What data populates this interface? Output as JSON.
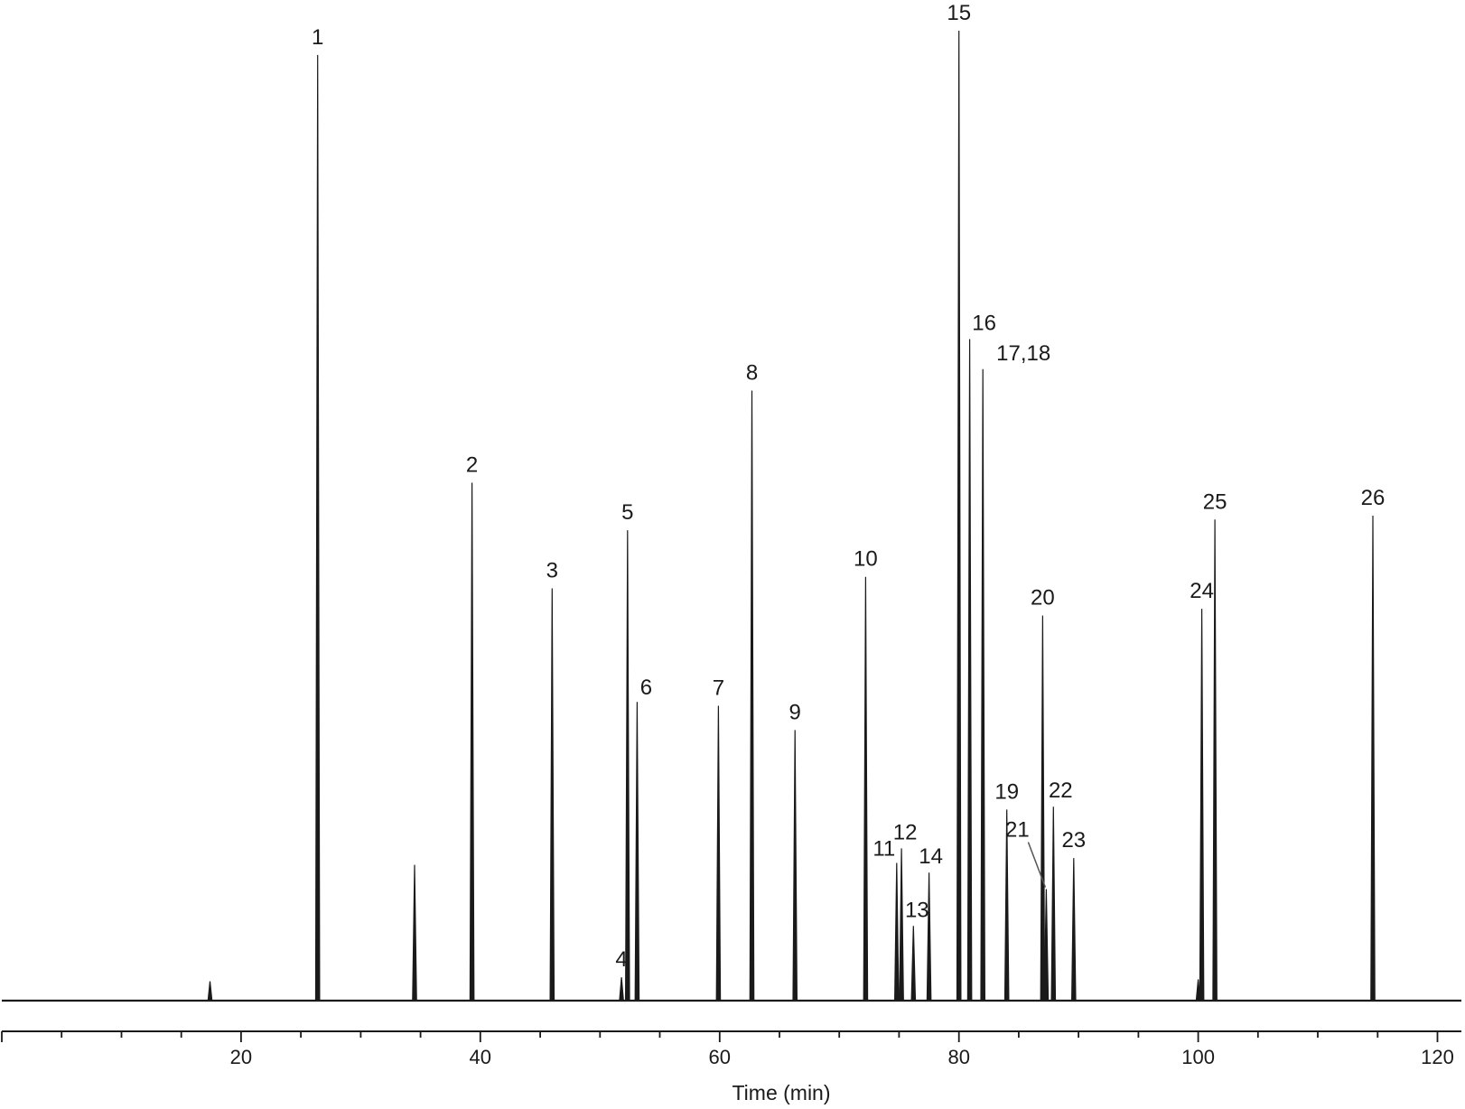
{
  "chart_data": {
    "type": "line",
    "title": "",
    "xlabel": "Time (min)",
    "ylabel": "",
    "xlim": [
      0,
      122
    ],
    "ylim": [
      0,
      1.0
    ],
    "grid": false,
    "legend": "none",
    "line_color": "#1a1a1a",
    "x_major_ticks": [
      20,
      40,
      60,
      80,
      100,
      120
    ],
    "x_minor_step": 5,
    "peaks": [
      {
        "label": "1",
        "x": 26.4,
        "y": 0.975
      },
      {
        "label": "",
        "x": 17.4,
        "y": 0.02
      },
      {
        "label": "",
        "x": 34.5,
        "y": 0.14
      },
      {
        "label": "2",
        "x": 39.3,
        "y": 0.534
      },
      {
        "label": "3",
        "x": 46.0,
        "y": 0.425
      },
      {
        "label": "4",
        "x": 51.8,
        "y": 0.024
      },
      {
        "label": "5",
        "x": 52.3,
        "y": 0.485
      },
      {
        "label": "6",
        "x": 53.1,
        "y": 0.308
      },
      {
        "label": "7",
        "x": 59.9,
        "y": 0.304
      },
      {
        "label": "8",
        "x": 62.7,
        "y": 0.629
      },
      {
        "label": "9",
        "x": 66.3,
        "y": 0.279
      },
      {
        "label": "10",
        "x": 72.2,
        "y": 0.437
      },
      {
        "label": "11",
        "x": 74.8,
        "y": 0.142
      },
      {
        "label": "12",
        "x": 75.2,
        "y": 0.157
      },
      {
        "label": "13",
        "x": 76.2,
        "y": 0.077
      },
      {
        "label": "14",
        "x": 77.5,
        "y": 0.132
      },
      {
        "label": "15",
        "x": 80.0,
        "y": 1.0
      },
      {
        "label": "16",
        "x": 80.9,
        "y": 0.682
      },
      {
        "label": "17,18",
        "x": 82.0,
        "y": 0.651
      },
      {
        "label": "19",
        "x": 84.0,
        "y": 0.197
      },
      {
        "label": "20",
        "x": 87.0,
        "y": 0.397
      },
      {
        "label": "21",
        "x": 87.3,
        "y": 0.115
      },
      {
        "label": "22",
        "x": 87.9,
        "y": 0.2
      },
      {
        "label": "23",
        "x": 89.6,
        "y": 0.147
      },
      {
        "label": "",
        "x": 100.0,
        "y": 0.022
      },
      {
        "label": "24",
        "x": 100.3,
        "y": 0.404
      },
      {
        "label": "25",
        "x": 101.4,
        "y": 0.496
      },
      {
        "label": "26",
        "x": 114.6,
        "y": 0.5
      }
    ]
  }
}
